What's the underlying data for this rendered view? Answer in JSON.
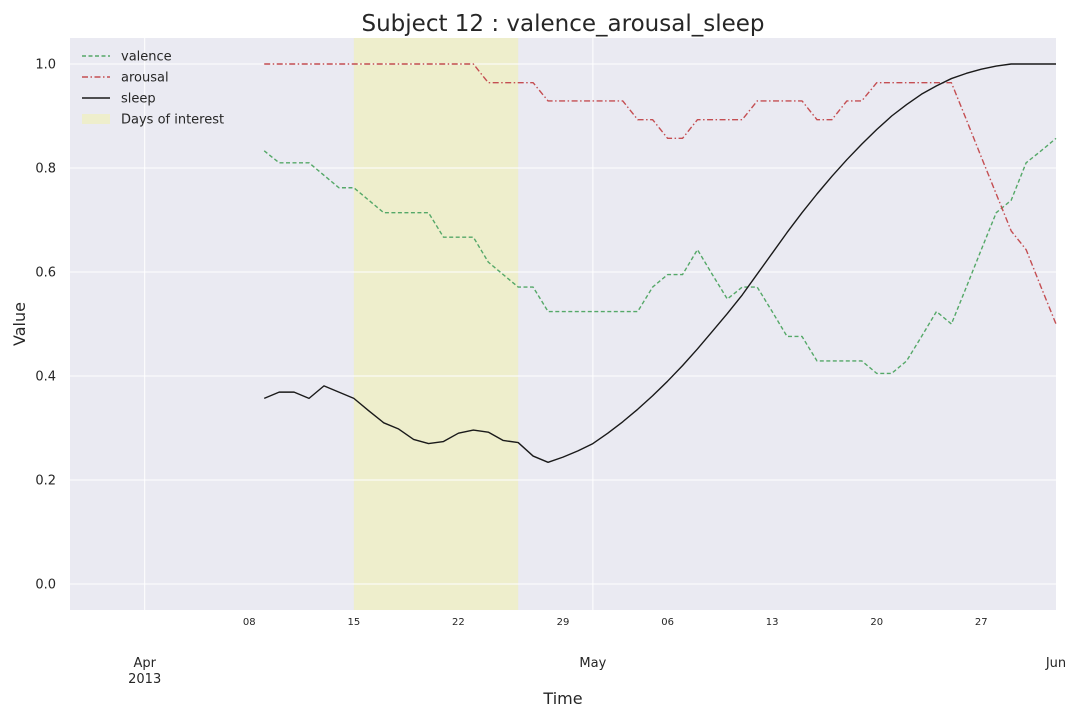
{
  "chart_data": {
    "type": "line",
    "title": "Subject 12 : valence_arousal_sleep",
    "xlabel": "Time",
    "ylabel": "Value",
    "x_range": [
      "2013-03-27",
      "2013-06-01"
    ],
    "ylim": [
      -0.05,
      1.05
    ],
    "y_ticks": [
      "0.0",
      "0.2",
      "0.4",
      "0.6",
      "0.8",
      "1.0"
    ],
    "x_minor_ticks": [
      {
        "date": "2013-04-08",
        "label": "08"
      },
      {
        "date": "2013-04-15",
        "label": "15"
      },
      {
        "date": "2013-04-22",
        "label": "22"
      },
      {
        "date": "2013-04-29",
        "label": "29"
      },
      {
        "date": "2013-05-06",
        "label": "06"
      },
      {
        "date": "2013-05-13",
        "label": "13"
      },
      {
        "date": "2013-05-20",
        "label": "20"
      },
      {
        "date": "2013-05-27",
        "label": "27"
      }
    ],
    "x_major_ticks": [
      {
        "date": "2013-04-01",
        "label": "Apr",
        "label2": "2013"
      },
      {
        "date": "2013-05-01",
        "label": "May",
        "label2": ""
      },
      {
        "date": "2013-06-01",
        "label": "Jun",
        "label2": ""
      }
    ],
    "grid": true,
    "legend_position": "top-left",
    "highlight": {
      "name": "Days of interest",
      "start": "2013-04-15",
      "end": "2013-04-26",
      "color": "#eeeecc"
    },
    "series": [
      {
        "name": "valence",
        "color": "#55a868",
        "dash": "dashed",
        "x": [
          "2013-04-09",
          "2013-04-10",
          "2013-04-11",
          "2013-04-12",
          "2013-04-13",
          "2013-04-14",
          "2013-04-15",
          "2013-04-16",
          "2013-04-17",
          "2013-04-18",
          "2013-04-19",
          "2013-04-20",
          "2013-04-21",
          "2013-04-22",
          "2013-04-23",
          "2013-04-24",
          "2013-04-25",
          "2013-04-26",
          "2013-04-27",
          "2013-04-28",
          "2013-04-29",
          "2013-04-30",
          "2013-05-01",
          "2013-05-02",
          "2013-05-03",
          "2013-05-04",
          "2013-05-05",
          "2013-05-06",
          "2013-05-07",
          "2013-05-08",
          "2013-05-09",
          "2013-05-10",
          "2013-05-11",
          "2013-05-12",
          "2013-05-13",
          "2013-05-14",
          "2013-05-15",
          "2013-05-16",
          "2013-05-17",
          "2013-05-18",
          "2013-05-19",
          "2013-05-20",
          "2013-05-21",
          "2013-05-22",
          "2013-05-23",
          "2013-05-24",
          "2013-05-25",
          "2013-05-26",
          "2013-05-27",
          "2013-05-28",
          "2013-05-29",
          "2013-05-30",
          "2013-05-31",
          "2013-06-01"
        ],
        "values": [
          0.833,
          0.81,
          0.81,
          0.81,
          0.786,
          0.762,
          0.762,
          0.738,
          0.714,
          0.714,
          0.714,
          0.714,
          0.667,
          0.667,
          0.667,
          0.619,
          0.595,
          0.571,
          0.571,
          0.524,
          0.524,
          0.524,
          0.524,
          0.524,
          0.524,
          0.524,
          0.571,
          0.595,
          0.595,
          0.643,
          0.595,
          0.548,
          0.571,
          0.571,
          0.524,
          0.476,
          0.476,
          0.429,
          0.429,
          0.429,
          0.429,
          0.405,
          0.405,
          0.429,
          0.476,
          0.524,
          0.5,
          0.571,
          0.643,
          0.714,
          0.738,
          0.81,
          0.833,
          0.857
        ]
      },
      {
        "name": "arousal",
        "color": "#c44e52",
        "dash": "dashdot",
        "x": [
          "2013-04-09",
          "2013-04-10",
          "2013-04-11",
          "2013-04-12",
          "2013-04-13",
          "2013-04-14",
          "2013-04-15",
          "2013-04-16",
          "2013-04-17",
          "2013-04-18",
          "2013-04-19",
          "2013-04-20",
          "2013-04-21",
          "2013-04-22",
          "2013-04-23",
          "2013-04-24",
          "2013-04-25",
          "2013-04-26",
          "2013-04-27",
          "2013-04-28",
          "2013-04-29",
          "2013-04-30",
          "2013-05-01",
          "2013-05-02",
          "2013-05-03",
          "2013-05-04",
          "2013-05-05",
          "2013-05-06",
          "2013-05-07",
          "2013-05-08",
          "2013-05-09",
          "2013-05-10",
          "2013-05-11",
          "2013-05-12",
          "2013-05-13",
          "2013-05-14",
          "2013-05-15",
          "2013-05-16",
          "2013-05-17",
          "2013-05-18",
          "2013-05-19",
          "2013-05-20",
          "2013-05-21",
          "2013-05-22",
          "2013-05-23",
          "2013-05-24",
          "2013-05-25",
          "2013-05-26",
          "2013-05-27",
          "2013-05-28",
          "2013-05-29",
          "2013-05-30",
          "2013-05-31",
          "2013-06-01"
        ],
        "values": [
          1.0,
          1.0,
          1.0,
          1.0,
          1.0,
          1.0,
          1.0,
          1.0,
          1.0,
          1.0,
          1.0,
          1.0,
          1.0,
          1.0,
          1.0,
          0.964,
          0.964,
          0.964,
          0.964,
          0.929,
          0.929,
          0.929,
          0.929,
          0.929,
          0.929,
          0.893,
          0.893,
          0.857,
          0.857,
          0.893,
          0.893,
          0.893,
          0.893,
          0.929,
          0.929,
          0.929,
          0.929,
          0.893,
          0.893,
          0.929,
          0.929,
          0.964,
          0.964,
          0.964,
          0.964,
          0.964,
          0.964,
          0.893,
          0.821,
          0.75,
          0.679,
          0.643,
          0.571,
          0.5
        ]
      },
      {
        "name": "sleep",
        "color": "#1a1a1a",
        "dash": "solid",
        "x": [
          "2013-04-09",
          "2013-04-10",
          "2013-04-11",
          "2013-04-12",
          "2013-04-13",
          "2013-04-14",
          "2013-04-15",
          "2013-04-16",
          "2013-04-17",
          "2013-04-18",
          "2013-04-19",
          "2013-04-20",
          "2013-04-21",
          "2013-04-22",
          "2013-04-23",
          "2013-04-24",
          "2013-04-25",
          "2013-04-26",
          "2013-04-27",
          "2013-04-28",
          "2013-04-29",
          "2013-04-30",
          "2013-05-01",
          "2013-05-02",
          "2013-05-03",
          "2013-05-04",
          "2013-05-05",
          "2013-05-06",
          "2013-05-07",
          "2013-05-08",
          "2013-05-09",
          "2013-05-10",
          "2013-05-11",
          "2013-05-12",
          "2013-05-13",
          "2013-05-14",
          "2013-05-15",
          "2013-05-16",
          "2013-05-17",
          "2013-05-18",
          "2013-05-19",
          "2013-05-20",
          "2013-05-21",
          "2013-05-22",
          "2013-05-23",
          "2013-05-24",
          "2013-05-25",
          "2013-05-26",
          "2013-05-27",
          "2013-05-28",
          "2013-05-29",
          "2013-05-30",
          "2013-05-31",
          "2013-06-01"
        ],
        "values": [
          0.357,
          0.369,
          0.369,
          0.357,
          0.381,
          0.369,
          0.357,
          0.333,
          0.31,
          0.298,
          0.278,
          0.27,
          0.274,
          0.29,
          0.296,
          0.292,
          0.276,
          0.272,
          0.246,
          0.234,
          0.244,
          0.256,
          0.27,
          0.29,
          0.312,
          0.336,
          0.362,
          0.39,
          0.42,
          0.452,
          0.486,
          0.52,
          0.556,
          0.596,
          0.636,
          0.676,
          0.714,
          0.75,
          0.784,
          0.816,
          0.846,
          0.874,
          0.9,
          0.922,
          0.942,
          0.958,
          0.972,
          0.982,
          0.99,
          0.996,
          1.0,
          1.0,
          1.0,
          1.0
        ]
      }
    ]
  }
}
